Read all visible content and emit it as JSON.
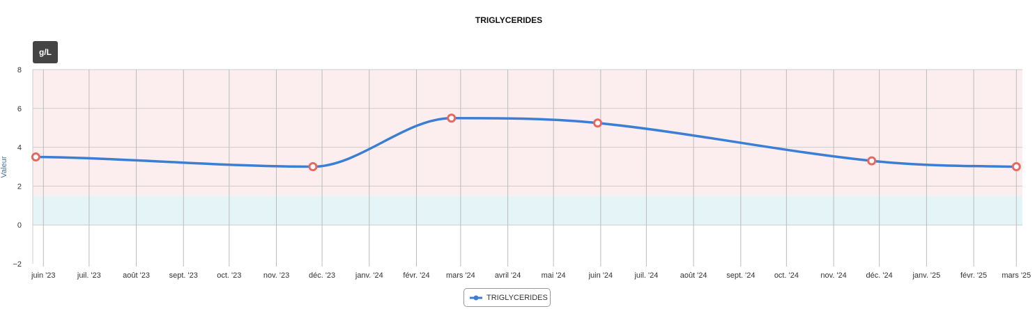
{
  "chart_data": {
    "type": "line",
    "title": "TRIGLYCERIDES",
    "unit": "g/L",
    "ylabel": "Valeur",
    "ylim": [
      -2,
      8
    ],
    "yticks": [
      "8",
      "6",
      "4",
      "2",
      "0",
      "−2"
    ],
    "ytick_values": [
      8,
      6,
      4,
      2,
      0,
      -2
    ],
    "xlim": [
      "2023-05-25",
      "2025-03-05"
    ],
    "xticks": [
      {
        "label": "juin '23",
        "date": "2023-06-01"
      },
      {
        "label": "juil. '23",
        "date": "2023-07-01"
      },
      {
        "label": "août '23",
        "date": "2023-08-01"
      },
      {
        "label": "sept. '23",
        "date": "2023-09-01"
      },
      {
        "label": "oct. '23",
        "date": "2023-10-01"
      },
      {
        "label": "nov. '23",
        "date": "2023-11-01"
      },
      {
        "label": "déc. '23",
        "date": "2023-12-01"
      },
      {
        "label": "janv. '24",
        "date": "2024-01-01"
      },
      {
        "label": "févr. '24",
        "date": "2024-02-01"
      },
      {
        "label": "mars '24",
        "date": "2024-03-01"
      },
      {
        "label": "avril '24",
        "date": "2024-04-01"
      },
      {
        "label": "mai '24",
        "date": "2024-05-01"
      },
      {
        "label": "juin '24",
        "date": "2024-06-01"
      },
      {
        "label": "juil. '24",
        "date": "2024-07-01"
      },
      {
        "label": "août '24",
        "date": "2024-08-01"
      },
      {
        "label": "sept. '24",
        "date": "2024-09-01"
      },
      {
        "label": "oct. '24",
        "date": "2024-10-01"
      },
      {
        "label": "nov. '24",
        "date": "2024-11-01"
      },
      {
        "label": "déc. '24",
        "date": "2024-12-01"
      },
      {
        "label": "janv. '25",
        "date": "2025-01-01"
      },
      {
        "label": "févr. '25",
        "date": "2025-02-01"
      },
      {
        "label": "mars '25",
        "date": "2025-03-01"
      }
    ],
    "series": [
      {
        "name": "TRIGLYCERIDES",
        "color": "#3a7fd5",
        "marker_color": "#e8675f",
        "points": [
          {
            "date": "2023-05-27",
            "value": 3.5
          },
          {
            "date": "2023-11-25",
            "value": 3.0
          },
          {
            "date": "2024-02-24",
            "value": 5.5
          },
          {
            "date": "2024-05-30",
            "value": 5.25
          },
          {
            "date": "2024-11-26",
            "value": 3.3
          },
          {
            "date": "2025-03-01",
            "value": 3.0
          }
        ]
      }
    ],
    "bands": [
      {
        "from": 1.5,
        "to": 8,
        "color": "#fceeee"
      },
      {
        "from": 0,
        "to": 1.5,
        "color": "#e5f4f6"
      }
    ],
    "grid": true,
    "legend": "bottom-center"
  }
}
